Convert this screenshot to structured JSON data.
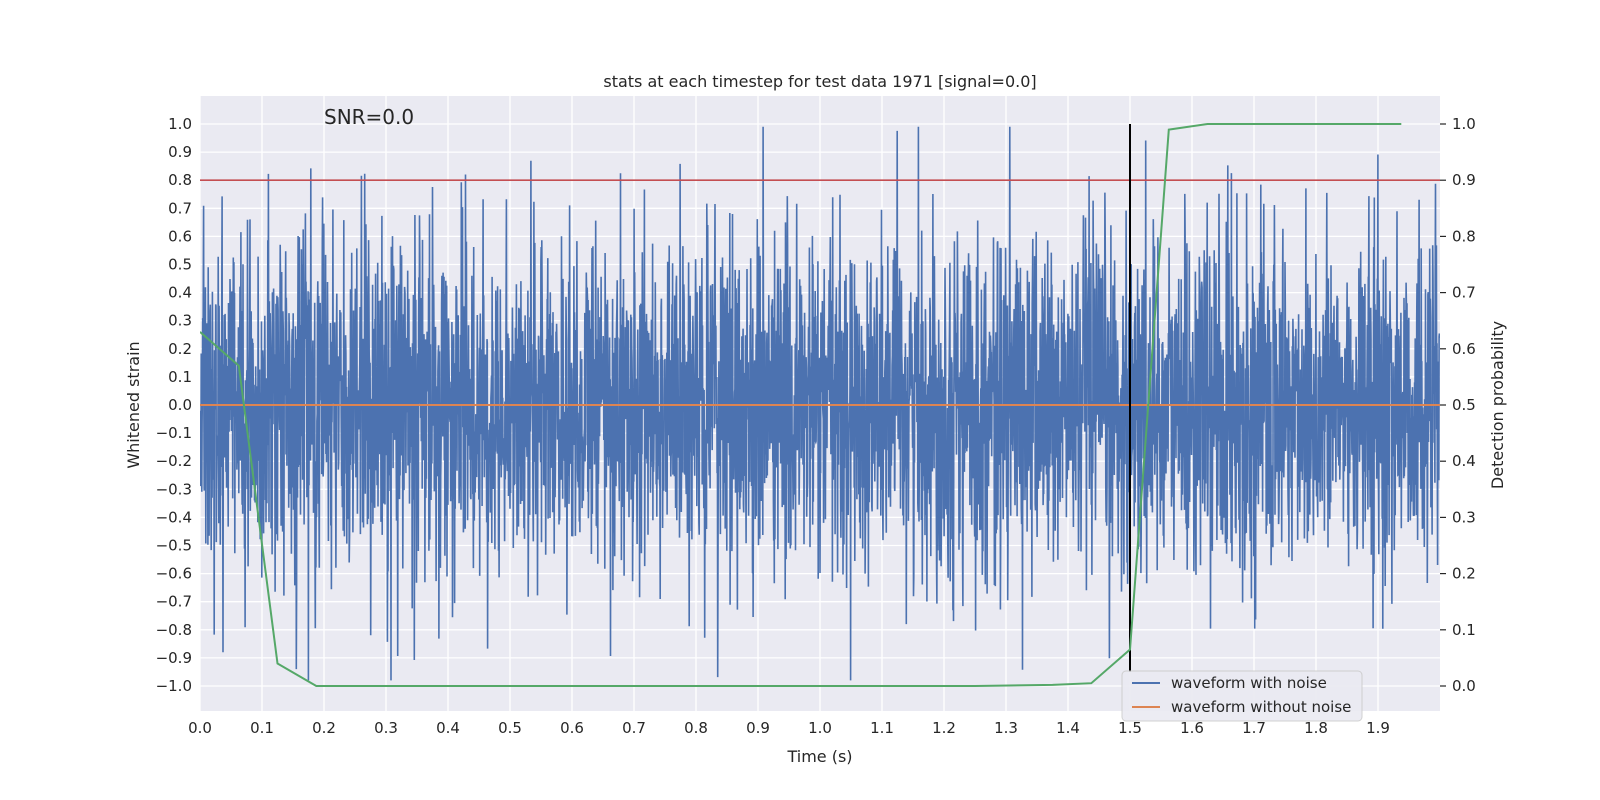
{
  "chart_data": {
    "type": "line",
    "title": "stats at each timestep for test data 1971 [signal=0.0]",
    "annotation": "SNR=0.0",
    "xlabel": "Time (s)",
    "ylabel": "Whitened strain",
    "y2label": "Detection probability",
    "xlim": [
      0.0,
      2.0
    ],
    "ylim": [
      -1.08,
      1.1
    ],
    "y2lim": [
      -0.045,
      1.045
    ],
    "xticks": [
      "0.0",
      "0.1",
      "0.2",
      "0.3",
      "0.4",
      "0.5",
      "0.6",
      "0.7",
      "0.8",
      "0.9",
      "1.0",
      "1.1",
      "1.2",
      "1.3",
      "1.4",
      "1.5",
      "1.6",
      "1.7",
      "1.8",
      "1.9"
    ],
    "yticks": [
      "1.0",
      "0.9",
      "0.8",
      "0.7",
      "0.6",
      "0.5",
      "0.4",
      "0.3",
      "0.2",
      "0.1",
      "0.0",
      "−0.1",
      "−0.2",
      "−0.3",
      "−0.4",
      "−0.5",
      "−0.6",
      "−0.7",
      "−0.8",
      "−0.9",
      "−1.0"
    ],
    "y2ticks": [
      "1.0",
      "0.9",
      "0.8",
      "0.7",
      "0.6",
      "0.5",
      "0.4",
      "0.3",
      "0.2",
      "0.1",
      "0.0"
    ],
    "threshold": 0.8,
    "threshold_color": "#c44e52",
    "vline_x": 1.5,
    "vline_range": [
      -0.95,
      1.0
    ],
    "series": [
      {
        "name": "waveform with noise",
        "color": "#4c72b0",
        "n_points": 4096,
        "noise_std": 0.3
      },
      {
        "name": "waveform without noise",
        "color": "#dd8452",
        "x": [
          0.0,
          2.0
        ],
        "y": [
          0.0,
          0.0
        ]
      },
      {
        "name": "detection probability",
        "color": "#55a868",
        "axis": "right",
        "x": [
          0.0,
          0.0625,
          0.125,
          0.1875,
          0.25,
          0.5,
          0.75,
          1.0,
          1.25,
          1.375,
          1.4375,
          1.5,
          1.5625,
          1.625,
          1.75,
          1.875,
          1.9375
        ],
        "y": [
          0.63,
          0.57,
          0.04,
          0.0,
          0.0,
          0.0,
          0.0,
          0.0,
          0.0,
          0.002,
          0.005,
          0.065,
          0.99,
          1.0,
          1.0,
          1.0,
          1.0
        ]
      }
    ],
    "legend": {
      "position": "bottom-right",
      "entries": [
        "waveform with noise",
        "waveform without noise"
      ]
    }
  }
}
